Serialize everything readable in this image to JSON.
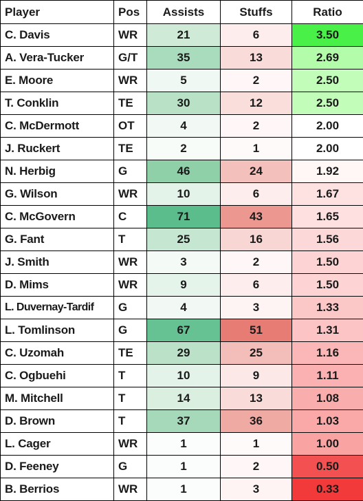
{
  "headers": {
    "player": "Player",
    "pos": "Pos",
    "assists": "Assists",
    "stuffs": "Stuffs",
    "ratio": "Ratio"
  },
  "colors": {
    "assists_max": "#57bb8a",
    "stuffs_max": "#e67c73",
    "ratio_high": "#00ff00",
    "ratio_low": "#ff0000"
  },
  "rows": [
    {
      "player": "C. Davis",
      "pos": "WR",
      "assists": "21",
      "stuffs": "6",
      "ratio": "3.50",
      "assists_bg": "#cfead6",
      "stuffs_bg": "#fdeeed",
      "ratio_bg": "#48f048"
    },
    {
      "player": "A. Vera-Tucker",
      "pos": "G/T",
      "assists": "35",
      "stuffs": "13",
      "ratio": "2.69",
      "assists_bg": "#a9dbbd",
      "stuffs_bg": "#f9dcda",
      "ratio_bg": "#b3fcaa"
    },
    {
      "player": "E. Moore",
      "pos": "WR",
      "assists": "5",
      "stuffs": "2",
      "ratio": "2.50",
      "assists_bg": "#eff8f2",
      "stuffs_bg": "#fff7f7",
      "ratio_bg": "#c2fdb9"
    },
    {
      "player": "T. Conklin",
      "pos": "TE",
      "assists": "30",
      "stuffs": "12",
      "ratio": "2.50",
      "assists_bg": "#b8e1c6",
      "stuffs_bg": "#f9dedc",
      "ratio_bg": "#c2fdb9"
    },
    {
      "player": "C. McDermott",
      "pos": "OT",
      "assists": "4",
      "stuffs": "2",
      "ratio": "2.00",
      "assists_bg": "#f2f9f4",
      "stuffs_bg": "#fff7f7",
      "ratio_bg": "#ffffff"
    },
    {
      "player": "J. Ruckert",
      "pos": "TE",
      "assists": "2",
      "stuffs": "1",
      "ratio": "2.00",
      "assists_bg": "#f8fcf9",
      "stuffs_bg": "#fffafa",
      "ratio_bg": "#ffffff"
    },
    {
      "player": "N. Herbig",
      "pos": "G",
      "assists": "46",
      "stuffs": "24",
      "ratio": "1.92",
      "assists_bg": "#8fd0a8",
      "stuffs_bg": "#f4c0bc",
      "ratio_bg": "#fff6f6"
    },
    {
      "player": "G. Wilson",
      "pos": "WR",
      "assists": "10",
      "stuffs": "6",
      "ratio": "1.67",
      "assists_bg": "#e3f3e9",
      "stuffs_bg": "#fdeeed",
      "ratio_bg": "#fee1e1"
    },
    {
      "player": "C. McGovern",
      "pos": "C",
      "assists": "71",
      "stuffs": "43",
      "ratio": "1.65",
      "assists_bg": "#5cbd8c",
      "stuffs_bg": "#ec978f",
      "ratio_bg": "#fee0e0"
    },
    {
      "player": "G. Fant",
      "pos": "T",
      "assists": "25",
      "stuffs": "16",
      "ratio": "1.56",
      "assists_bg": "#c5e6d1",
      "stuffs_bg": "#f8d6d3",
      "ratio_bg": "#fdd8d8"
    },
    {
      "player": "J. Smith",
      "pos": "WR",
      "assists": "3",
      "stuffs": "2",
      "ratio": "1.50",
      "assists_bg": "#f4faf6",
      "stuffs_bg": "#fff7f7",
      "ratio_bg": "#fdd3d3"
    },
    {
      "player": "D. Mims",
      "pos": "WR",
      "assists": "9",
      "stuffs": "6",
      "ratio": "1.50",
      "assists_bg": "#e5f4ea",
      "stuffs_bg": "#fdeeed",
      "ratio_bg": "#fdd3d3"
    },
    {
      "player": "L. Duvernay-Tardif",
      "pos": "G",
      "assists": "4",
      "stuffs": "3",
      "ratio": "1.33",
      "assists_bg": "#f2f9f4",
      "stuffs_bg": "#fef4f4",
      "ratio_bg": "#fcc7c7"
    },
    {
      "player": "L. Tomlinson",
      "pos": "G",
      "assists": "67",
      "stuffs": "51",
      "ratio": "1.31",
      "assists_bg": "#66c193",
      "stuffs_bg": "#e67c73",
      "ratio_bg": "#fcc4c4"
    },
    {
      "player": "C. Uzomah",
      "pos": "TE",
      "assists": "29",
      "stuffs": "25",
      "ratio": "1.16",
      "assists_bg": "#bbe2c8",
      "stuffs_bg": "#f3bdb9",
      "ratio_bg": "#fbb7b7"
    },
    {
      "player": "C. Ogbuehi",
      "pos": "T",
      "assists": "10",
      "stuffs": "9",
      "ratio": "1.11",
      "assists_bg": "#e3f3e9",
      "stuffs_bg": "#fce8e7",
      "ratio_bg": "#fbb1b1"
    },
    {
      "player": "M. Mitchell",
      "pos": "T",
      "assists": "14",
      "stuffs": "13",
      "ratio": "1.08",
      "assists_bg": "#dbefe1",
      "stuffs_bg": "#f9dcda",
      "ratio_bg": "#faadad"
    },
    {
      "player": "D. Brown",
      "pos": "T",
      "assists": "37",
      "stuffs": "36",
      "ratio": "1.03",
      "assists_bg": "#a5d9ba",
      "stuffs_bg": "#efaaa4",
      "ratio_bg": "#faa8a8"
    },
    {
      "player": "L. Cager",
      "pos": "WR",
      "assists": "1",
      "stuffs": "1",
      "ratio": "1.00",
      "assists_bg": "#fbfdfc",
      "stuffs_bg": "#fffafa",
      "ratio_bg": "#f9a3a3"
    },
    {
      "player": "D. Feeney",
      "pos": "G",
      "assists": "1",
      "stuffs": "2",
      "ratio": "0.50",
      "assists_bg": "#fbfdfc",
      "stuffs_bg": "#fff7f7",
      "ratio_bg": "#f35151"
    },
    {
      "player": "B. Berrios",
      "pos": "WR",
      "assists": "1",
      "stuffs": "3",
      "ratio": "0.33",
      "assists_bg": "#fbfdfc",
      "stuffs_bg": "#fef4f4",
      "ratio_bg": "#f33a3a"
    }
  ]
}
